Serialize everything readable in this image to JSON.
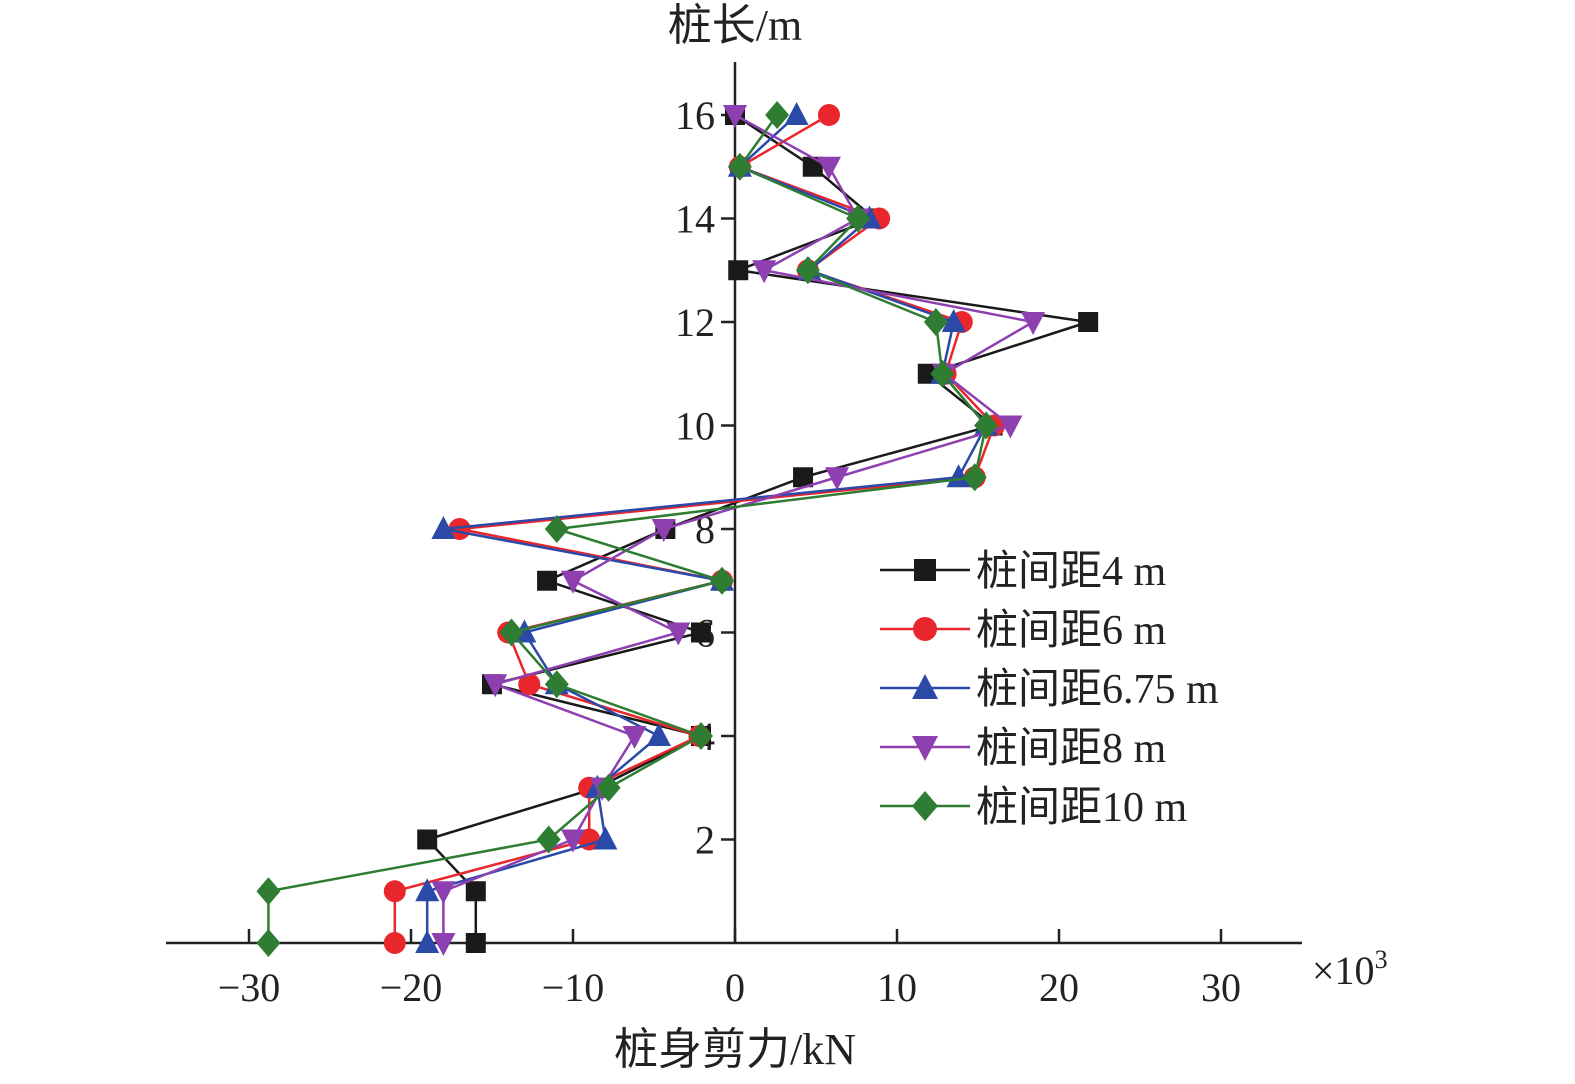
{
  "chart_data": {
    "type": "line",
    "xlabel": "桩身剪力/kN",
    "ylabel": "桩长/m",
    "x_multiplier": "×10",
    "x_multiplier_exp": "3",
    "xlim": [
      -35,
      35
    ],
    "ylim": [
      0,
      17
    ],
    "x_ticks": [
      {
        "value": -30,
        "label": "−30"
      },
      {
        "value": -20,
        "label": "−20"
      },
      {
        "value": -10,
        "label": "−10"
      },
      {
        "value": 0,
        "label": "0"
      },
      {
        "value": 10,
        "label": "10"
      },
      {
        "value": 20,
        "label": "20"
      },
      {
        "value": 30,
        "label": "30"
      }
    ],
    "y_ticks": [
      {
        "value": 2,
        "label": "2"
      },
      {
        "value": 4,
        "label": "4"
      },
      {
        "value": 6,
        "label": "6"
      },
      {
        "value": 8,
        "label": "8"
      },
      {
        "value": 10,
        "label": "10"
      },
      {
        "value": 12,
        "label": "12"
      },
      {
        "value": 14,
        "label": "14"
      },
      {
        "value": 16,
        "label": "16"
      }
    ],
    "grid": false,
    "legend_position": "right",
    "series": [
      {
        "name": "桩间距4 m",
        "color": "#1a1a1a",
        "marker": "square",
        "points": [
          [
            -16,
            0
          ],
          [
            -16,
            1
          ],
          [
            -19,
            2
          ],
          [
            -8.5,
            3
          ],
          [
            -2.1,
            4
          ],
          [
            -15,
            5
          ],
          [
            -2.1,
            6
          ],
          [
            -11.6,
            7
          ],
          [
            -4.3,
            8
          ],
          [
            4.2,
            9
          ],
          [
            15.9,
            10
          ],
          [
            11.9,
            11
          ],
          [
            21.8,
            12
          ],
          [
            0.2,
            13
          ],
          [
            8.6,
            14
          ],
          [
            4.8,
            15
          ],
          [
            0,
            16
          ]
        ]
      },
      {
        "name": "桩间距6 m",
        "color": "#e8262b",
        "marker": "circle",
        "points": [
          [
            -21,
            0
          ],
          [
            -21,
            1
          ],
          [
            -9,
            2
          ],
          [
            -9,
            3
          ],
          [
            -2.2,
            4
          ],
          [
            -12.7,
            5
          ],
          [
            -14,
            6
          ],
          [
            -0.8,
            7
          ],
          [
            -17,
            8
          ],
          [
            14.8,
            9
          ],
          [
            16,
            10
          ],
          [
            13,
            11
          ],
          [
            14,
            12
          ],
          [
            4.5,
            13
          ],
          [
            8.9,
            14
          ],
          [
            0.3,
            15
          ],
          [
            5.8,
            16
          ]
        ]
      },
      {
        "name": "桩间距6.75 m",
        "color": "#2b4aa8",
        "marker": "triangle-up",
        "points": [
          [
            -19,
            0
          ],
          [
            -19,
            1
          ],
          [
            -8,
            2
          ],
          [
            -8.5,
            3
          ],
          [
            -4.7,
            4
          ],
          [
            -11,
            5
          ],
          [
            -13,
            6
          ],
          [
            -0.8,
            7
          ],
          [
            -18,
            8
          ],
          [
            13.8,
            9
          ],
          [
            15.5,
            10
          ],
          [
            12.8,
            11
          ],
          [
            13.5,
            12
          ],
          [
            4.6,
            13
          ],
          [
            8.3,
            14
          ],
          [
            0.3,
            15
          ],
          [
            3.8,
            16
          ]
        ]
      },
      {
        "name": "桩间距8 m",
        "color": "#8e3fb0",
        "marker": "triangle-down",
        "points": [
          [
            -18,
            0
          ],
          [
            -18,
            1
          ],
          [
            -10,
            2
          ],
          [
            -8.2,
            3
          ],
          [
            -6.2,
            4
          ],
          [
            -14.8,
            5
          ],
          [
            -3.5,
            6
          ],
          [
            -10,
            7
          ],
          [
            -4.4,
            8
          ],
          [
            6.3,
            9
          ],
          [
            17,
            10
          ],
          [
            12.9,
            11
          ],
          [
            18.4,
            12
          ],
          [
            1.8,
            13
          ],
          [
            7.6,
            14
          ],
          [
            5.8,
            15
          ],
          [
            0,
            16
          ]
        ]
      },
      {
        "name": "桩间距10 m",
        "color": "#2e7d32",
        "marker": "diamond",
        "points": [
          [
            -28.8,
            0
          ],
          [
            -28.8,
            1
          ],
          [
            -11.5,
            2
          ],
          [
            -7.8,
            3
          ],
          [
            -2.1,
            4
          ],
          [
            -11,
            5
          ],
          [
            -13.8,
            6
          ],
          [
            -0.8,
            7
          ],
          [
            -11,
            8
          ],
          [
            14.8,
            9
          ],
          [
            15.5,
            10
          ],
          [
            12.8,
            11
          ],
          [
            12.4,
            12
          ],
          [
            4.5,
            13
          ],
          [
            7.6,
            14
          ],
          [
            0.3,
            15
          ],
          [
            2.6,
            16
          ]
        ]
      }
    ]
  }
}
